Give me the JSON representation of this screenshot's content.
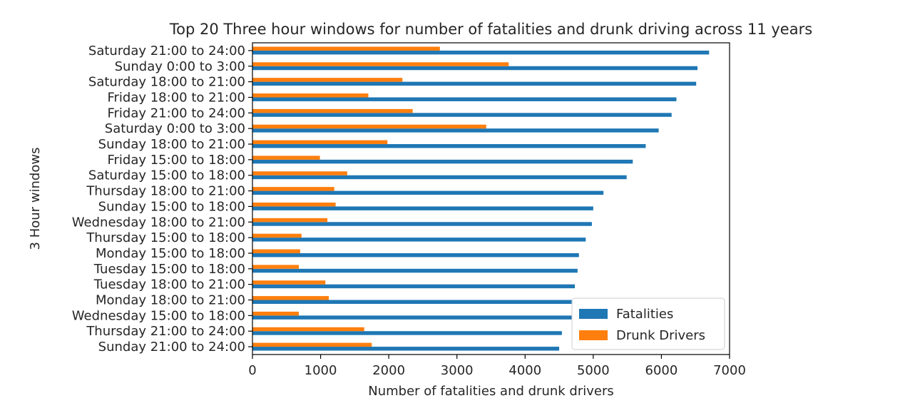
{
  "chart_data": {
    "type": "bar",
    "orientation": "horizontal",
    "title": "Top 20 Three hour windows for number of fatalities and drunk driving across 11 years",
    "xlabel": "Number of fatalities and drunk drivers",
    "ylabel": "3 Hour windows",
    "xlim": [
      0,
      7000
    ],
    "xticks": [
      0,
      1000,
      2000,
      3000,
      4000,
      5000,
      6000,
      7000
    ],
    "grid": false,
    "legend_position": "lower-right",
    "categories": [
      "Saturday 21:00 to 24:00",
      "Sunday 0:00 to 3:00",
      "Saturday 18:00 to 21:00",
      "Friday 18:00 to 21:00",
      "Friday 21:00 to 24:00",
      "Saturday 0:00 to 3:00",
      "Sunday 18:00 to 21:00",
      "Friday 15:00 to 18:00",
      "Saturday 15:00 to 18:00",
      "Thursday 18:00 to 21:00",
      "Sunday 15:00 to 18:00",
      "Wednesday 18:00 to 21:00",
      "Thursday 15:00 to 18:00",
      "Monday 15:00 to 18:00",
      "Tuesday 15:00 to 18:00",
      "Tuesday 18:00 to 21:00",
      "Monday 18:00 to 21:00",
      "Wednesday 15:00 to 18:00",
      "Thursday 21:00 to 24:00",
      "Sunday 21:00 to 24:00"
    ],
    "series": [
      {
        "name": "Fatalities",
        "color": "#1f77b4",
        "values": [
          6700,
          6530,
          6510,
          6220,
          6150,
          5960,
          5770,
          5580,
          5490,
          5150,
          5000,
          4980,
          4890,
          4790,
          4770,
          4730,
          4700,
          4690,
          4540,
          4500
        ]
      },
      {
        "name": "Drunk Drivers",
        "color": "#ff7f0e",
        "values": [
          2750,
          3760,
          2200,
          1700,
          2350,
          3430,
          1980,
          990,
          1390,
          1200,
          1220,
          1100,
          720,
          700,
          680,
          1070,
          1120,
          680,
          1640,
          1750
        ]
      }
    ]
  }
}
